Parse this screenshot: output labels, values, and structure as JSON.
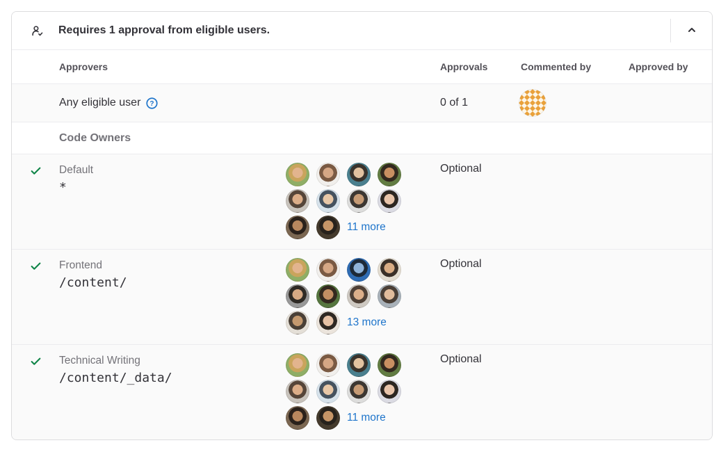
{
  "panel": {
    "title": "Requires 1 approval from eligible users.",
    "collapse_icon": "chevron-up",
    "header_icon": "user-check"
  },
  "table": {
    "columns": [
      "Approvers",
      "Approvals",
      "Commented by",
      "Approved by"
    ]
  },
  "summary_row": {
    "label": "Any eligible user",
    "help_icon": "question-circle",
    "approvals": "0 of 1",
    "commented_by_identicon": {
      "bg": "#fdf6e8",
      "fg": "#e9a13b"
    }
  },
  "section": {
    "label": "Code Owners"
  },
  "rules": [
    {
      "name": "Default",
      "path": "*",
      "approvals": "Optional",
      "more_label": "11 more",
      "approved": true,
      "avatars": [
        {
          "bg": "#8fae66",
          "hair": "#c9a45c",
          "face": "#e2b48e"
        },
        {
          "bg": "#f1efec",
          "hair": "#7a5a43",
          "face": "#d5a785"
        },
        {
          "bg": "#4a808f",
          "hair": "#3a332c",
          "face": "#e2c2a0"
        },
        {
          "bg": "#627c42",
          "hair": "#33291f",
          "face": "#c88f61"
        },
        {
          "bg": "#c8c3bc",
          "hair": "#554539",
          "face": "#dbad88"
        },
        {
          "bg": "#d6e2eb",
          "hair": "#45525f",
          "face": "#e7c7a7"
        },
        {
          "bg": "#dddddc",
          "hair": "#3c3732",
          "face": "#c69b75"
        },
        {
          "bg": "#dbdbe3",
          "hair": "#2c2621",
          "face": "#e8c4aa"
        },
        {
          "bg": "#7b6752",
          "hair": "#2a211b",
          "face": "#b8875e"
        },
        {
          "bg": "#453b2d",
          "hair": "#27221c",
          "face": "#c69567"
        }
      ]
    },
    {
      "name": "Frontend",
      "path": "/content/",
      "approvals": "Optional",
      "more_label": "13 more",
      "approved": true,
      "avatars": [
        {
          "bg": "#8fae66",
          "hair": "#c9a45c",
          "face": "#e2b48e"
        },
        {
          "bg": "#f1efec",
          "hair": "#7a5a43",
          "face": "#d5a785"
        },
        {
          "bg": "#2f6cb3",
          "hair": "#1d2a38",
          "face": "#8fb3d9"
        },
        {
          "bg": "#e3ddd1",
          "hair": "#3a3028",
          "face": "#d8ac84"
        },
        {
          "bg": "#999999",
          "hair": "#2f2a25",
          "face": "#d7aa85"
        },
        {
          "bg": "#56763f",
          "hair": "#33291f",
          "face": "#c38f63"
        },
        {
          "bg": "#cec9c2",
          "hair": "#4e4036",
          "face": "#dcaf8a"
        },
        {
          "bg": "#a8b1b9",
          "hair": "#4a3f37",
          "face": "#e1bc9c"
        },
        {
          "bg": "#e4dfd7",
          "hair": "#4a4037",
          "face": "#c4996f"
        },
        {
          "bg": "#ebe4dc",
          "hair": "#2e2823",
          "face": "#e5c1a5"
        }
      ]
    },
    {
      "name": "Technical Writing",
      "path": "/content/_data/",
      "approvals": "Optional",
      "more_label": "11 more",
      "approved": true,
      "avatars": [
        {
          "bg": "#8fae66",
          "hair": "#c9a45c",
          "face": "#e2b48e"
        },
        {
          "bg": "#f1efec",
          "hair": "#7a5a43",
          "face": "#d5a785"
        },
        {
          "bg": "#4a808f",
          "hair": "#3a332c",
          "face": "#e2c2a0"
        },
        {
          "bg": "#627c42",
          "hair": "#33291f",
          "face": "#c88f61"
        },
        {
          "bg": "#c8c3bc",
          "hair": "#554539",
          "face": "#dbad88"
        },
        {
          "bg": "#d6e2eb",
          "hair": "#45525f",
          "face": "#e7c7a7"
        },
        {
          "bg": "#dddddc",
          "hair": "#3c3732",
          "face": "#c69b75"
        },
        {
          "bg": "#dbdbe3",
          "hair": "#2c2621",
          "face": "#e8c4aa"
        },
        {
          "bg": "#7b6752",
          "hair": "#2a211b",
          "face": "#b8875e"
        },
        {
          "bg": "#453b2d",
          "hair": "#27221c",
          "face": "#c69567"
        }
      ]
    }
  ],
  "colors": {
    "link_blue": "#1f75cb",
    "check_green": "#108548",
    "identicon_orange": "#e9a13b",
    "row_bg": "#fafafa",
    "border_gray": "#ececef"
  }
}
